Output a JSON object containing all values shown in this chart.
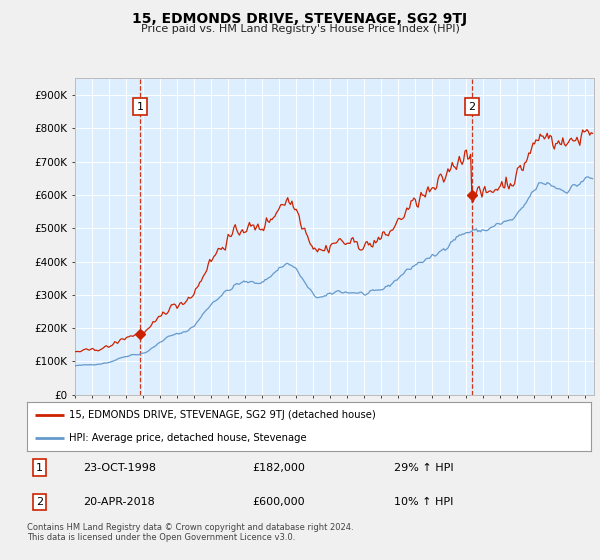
{
  "title": "15, EDMONDS DRIVE, STEVENAGE, SG2 9TJ",
  "subtitle": "Price paid vs. HM Land Registry's House Price Index (HPI)",
  "ylabel_ticks": [
    "£0",
    "£100K",
    "£200K",
    "£300K",
    "£400K",
    "£500K",
    "£600K",
    "£700K",
    "£800K",
    "£900K"
  ],
  "ytick_values": [
    0,
    100000,
    200000,
    300000,
    400000,
    500000,
    600000,
    700000,
    800000,
    900000
  ],
  "ylim": [
    0,
    950000
  ],
  "xlim_start": 1995.0,
  "xlim_end": 2025.5,
  "background_color": "#f0f0f0",
  "plot_bg_color": "#ddeeff",
  "grid_color": "#ffffff",
  "sale1_x": 1998.81,
  "sale1_y": 182000,
  "sale1_label": "1",
  "sale1_date": "23-OCT-1998",
  "sale1_price": "£182,000",
  "sale1_hpi": "29% ↑ HPI",
  "sale2_x": 2018.31,
  "sale2_y": 600000,
  "sale2_label": "2",
  "sale2_date": "20-APR-2018",
  "sale2_price": "£600,000",
  "sale2_hpi": "10% ↑ HPI",
  "line_color_hpi": "#6699cc",
  "line_color_price": "#cc2200",
  "marker_color": "#cc2200",
  "dashed_line_color": "#cc2200",
  "legend_label_price": "15, EDMONDS DRIVE, STEVENAGE, SG2 9TJ (detached house)",
  "legend_label_hpi": "HPI: Average price, detached house, Stevenage",
  "footer1": "Contains HM Land Registry data © Crown copyright and database right 2024.",
  "footer2": "This data is licensed under the Open Government Licence v3.0.",
  "noise_seed": 42
}
